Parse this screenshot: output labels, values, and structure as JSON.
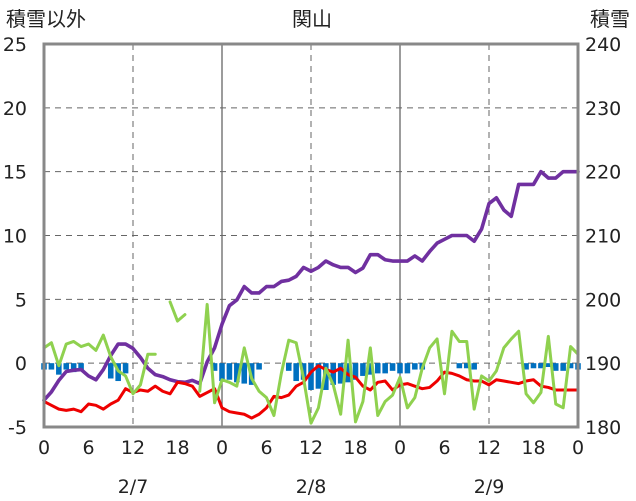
{
  "chart_data": {
    "type": "line",
    "title": "関山",
    "left_axis": {
      "label": "積雪以外",
      "min": -5,
      "max": 25,
      "ticks": [
        25,
        20,
        15,
        10,
        5,
        0,
        -5
      ]
    },
    "right_axis": {
      "label": "積雪",
      "min": 180,
      "max": 240,
      "ticks": [
        240,
        230,
        220,
        210,
        200,
        190,
        180
      ]
    },
    "x_hours": {
      "min": 0,
      "max": 72,
      "tick_labels": [
        "0",
        "6",
        "12",
        "18",
        "0",
        "6",
        "12",
        "18",
        "0",
        "6",
        "12",
        "18",
        "0"
      ]
    },
    "date_labels": [
      "2/7",
      "2/8",
      "2/9"
    ],
    "colors": {
      "snow_depth": "#7030a0",
      "temperature": "#ee0000",
      "wind": "#8fd14f",
      "bars": "#0070c0"
    },
    "grid": true,
    "series": [
      {
        "kind": "line",
        "axis": "right",
        "color": "#7030a0",
        "values": [
          184.2,
          185.5,
          187.3,
          188.7,
          188.9,
          189.0,
          188.0,
          187.4,
          189.0,
          191.2,
          193.0,
          193.0,
          192.3,
          190.9,
          189.2,
          188.2,
          187.9,
          187.4,
          187.1,
          187.0,
          187.3,
          186.8,
          190.2,
          192.4,
          196.1,
          199.0,
          199.9,
          202.0,
          201.0,
          201.0,
          202.0,
          202.0,
          202.8,
          203.0,
          203.6,
          205.0,
          204.4,
          205.0,
          206.0,
          205.4,
          205.0,
          205.0,
          204.2,
          204.9,
          207.0,
          207.0,
          206.2,
          206.0,
          206.0,
          206.0,
          206.8,
          206.0,
          207.5,
          208.8,
          209.4,
          210.0,
          210.0,
          210.0,
          209.1,
          211.0,
          215.0,
          215.9,
          214.0,
          213.0,
          218.0,
          218.0,
          218.0,
          220.0,
          219.0,
          219.0,
          220.0,
          220.0,
          220.0
        ]
      },
      {
        "kind": "line",
        "axis": "left",
        "color": "#ee0000",
        "values": [
          -3.0,
          -3.3,
          -3.6,
          -3.7,
          -3.6,
          -3.8,
          -3.2,
          -3.3,
          -3.6,
          -3.2,
          -2.9,
          -2.0,
          -2.3,
          -2.1,
          -2.2,
          -1.8,
          -2.2,
          -2.4,
          -1.5,
          -1.6,
          -1.8,
          -2.6,
          -2.3,
          -2.0,
          -3.5,
          -3.8,
          -3.9,
          -4.0,
          -4.3,
          -4.0,
          -3.5,
          -2.6,
          -2.7,
          -2.5,
          -1.8,
          -1.5,
          -0.7,
          -0.2,
          -0.5,
          -0.7,
          -0.4,
          -0.9,
          -1.1,
          -1.8,
          -2.1,
          -1.5,
          -1.4,
          -2.1,
          -1.7,
          -1.6,
          -1.8,
          -2.0,
          -1.9,
          -1.4,
          -0.7,
          -0.8,
          -1.0,
          -1.3,
          -1.4,
          -1.4,
          -1.7,
          -1.3,
          -1.4,
          -1.5,
          -1.6,
          -1.4,
          -1.3,
          -1.8,
          -1.9,
          -2.1,
          -2.1,
          -2.1,
          -2.1
        ]
      },
      {
        "kind": "line",
        "axis": "left",
        "color": "#8fd14f",
        "values": [
          1.2,
          1.6,
          -0.2,
          1.5,
          1.7,
          1.3,
          1.5,
          1.0,
          2.2,
          0.5,
          -0.6,
          -1.0,
          -2.4,
          -1.7,
          0.7,
          0.7,
          null,
          4.8,
          3.3,
          3.8,
          null,
          -2.2,
          4.6,
          -3.1,
          -1.3,
          -1.5,
          -1.8,
          1.2,
          -1.2,
          -2.2,
          -2.7,
          -4.1,
          -0.8,
          1.8,
          1.6,
          -1.2,
          -4.7,
          -3.5,
          -0.4,
          -1.7,
          -4.0,
          1.8,
          -4.6,
          -3.0,
          1.2,
          -4.1,
          -3.0,
          -2.5,
          -1.1,
          -3.5,
          -2.7,
          -0.4,
          1.2,
          1.9,
          -2.4,
          2.5,
          1.7,
          1.7,
          -3.6,
          -1.0,
          -1.4,
          -0.6,
          1.2,
          1.9,
          2.5,
          -2.4,
          -3.1,
          -2.3,
          2.1,
          -3.2,
          -3.5,
          1.3,
          0.7
        ]
      },
      {
        "kind": "bar",
        "axis": "left",
        "color": "#0070c0",
        "values": [
          -0.5,
          -0.5,
          -0.9,
          -0.5,
          -0.7,
          -0.5,
          0,
          0,
          0,
          -1.2,
          -1.4,
          -0.8,
          0,
          0,
          0,
          0,
          0,
          0,
          0,
          0,
          0,
          0,
          0,
          -0.6,
          -1.4,
          -1.3,
          -1.5,
          -1.6,
          -1.7,
          -0.5,
          0,
          0,
          0,
          -0.6,
          -1.4,
          -1.3,
          -2.1,
          -2.0,
          -2.1,
          -1.7,
          -1.6,
          -1.5,
          -1.3,
          -1.0,
          -0.9,
          -0.8,
          -0.8,
          -0.6,
          -0.8,
          -0.8,
          -0.5,
          -0.5,
          0,
          0,
          0,
          0,
          -0.4,
          -0.4,
          -0.5,
          0,
          0,
          0,
          0,
          0,
          0,
          -0.5,
          -0.4,
          -0.4,
          -0.3,
          -0.6,
          -0.6,
          -0.4,
          -0.5
        ]
      }
    ]
  }
}
